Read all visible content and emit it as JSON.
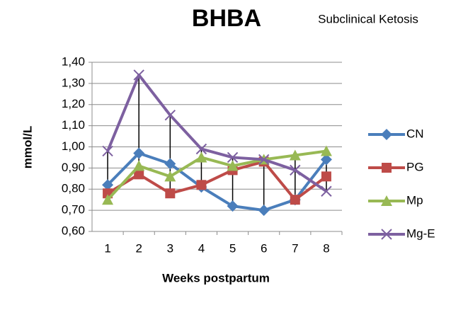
{
  "chart_data": {
    "type": "line",
    "title": "BHBA",
    "subtitle": "Subclinical Ketosis",
    "x_label": "Weeks  postpartum",
    "y_label": "mmol/L",
    "categories": [
      "1",
      "2",
      "3",
      "4",
      "5",
      "6",
      "7",
      "8"
    ],
    "series": [
      {
        "name": "CN",
        "color": "#4a7ebb",
        "marker": "diamond",
        "values": [
          0.82,
          0.97,
          0.92,
          0.81,
          0.72,
          0.7,
          0.75,
          0.94
        ]
      },
      {
        "name": "PG",
        "color": "#be4b48",
        "marker": "square",
        "values": [
          0.78,
          0.87,
          0.78,
          0.82,
          0.89,
          0.93,
          0.75,
          0.86
        ]
      },
      {
        "name": "Mp",
        "color": "#98b954",
        "marker": "triangle",
        "values": [
          0.75,
          0.91,
          0.86,
          0.95,
          0.91,
          0.94,
          0.96,
          0.98
        ]
      },
      {
        "name": "Mg-E",
        "color": "#7d60a0",
        "marker": "x",
        "values": [
          0.98,
          1.34,
          1.15,
          0.99,
          0.95,
          0.94,
          0.89,
          0.79
        ]
      }
    ],
    "ylim": [
      0.6,
      1.4
    ],
    "yticks": [
      {
        "value": 0.6,
        "label": "0,60"
      },
      {
        "value": 0.7,
        "label": "0,70"
      },
      {
        "value": 0.8,
        "label": "0,80"
      },
      {
        "value": 0.9,
        "label": "0,90"
      },
      {
        "value": 1.0,
        "label": "1,00"
      },
      {
        "value": 1.1,
        "label": "1,10"
      },
      {
        "value": 1.2,
        "label": "1,20"
      },
      {
        "value": 1.3,
        "label": "1,30"
      },
      {
        "value": 1.4,
        "label": "1,40"
      }
    ],
    "grid": true,
    "high_low_lines": true,
    "legend": "right"
  }
}
